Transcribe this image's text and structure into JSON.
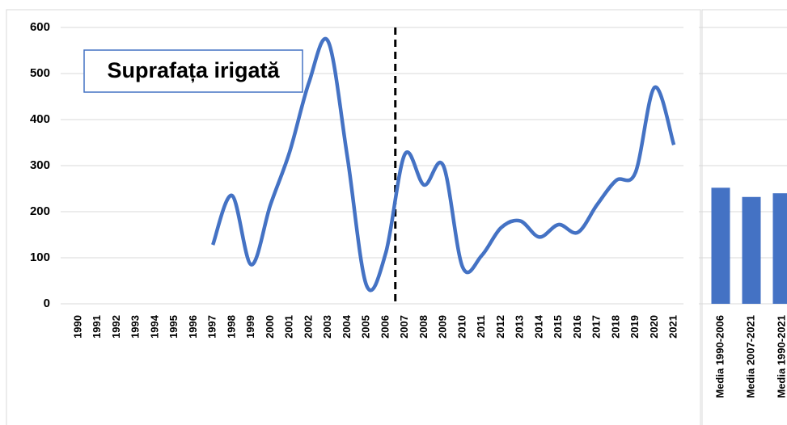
{
  "chart_data": [
    {
      "type": "line",
      "annotation": "Suprafața irigată",
      "categories": [
        "1990",
        "1991",
        "1992",
        "1993",
        "1994",
        "1995",
        "1996",
        "1997",
        "1998",
        "1999",
        "2000",
        "2001",
        "2002",
        "2003",
        "2004",
        "2005",
        "2006",
        "2007",
        "2008",
        "2009",
        "2010",
        "2011",
        "2012",
        "2013",
        "2014",
        "2015",
        "2016",
        "2017",
        "2018",
        "2019",
        "2020",
        "2021"
      ],
      "series": [
        {
          "color": "#4472c4",
          "values": [
            null,
            null,
            null,
            null,
            null,
            null,
            null,
            128,
            235,
            85,
            215,
            330,
            480,
            570,
            320,
            40,
            110,
            325,
            258,
            300,
            80,
            105,
            165,
            180,
            145,
            172,
            155,
            215,
            268,
            285,
            470,
            345
          ]
        }
      ],
      "divider_after": "2006",
      "ylim": [
        0,
        600
      ],
      "yticks": [
        0,
        100,
        200,
        300,
        400,
        500,
        600
      ],
      "grid": true
    },
    {
      "type": "bar",
      "categories": [
        "Media 1990-2006",
        "Media 2007-2021",
        "Media 1990-2021"
      ],
      "values": [
        252,
        232,
        240
      ],
      "color": "#4472c4",
      "ylim": [
        0,
        600
      ],
      "yticks": [
        0,
        100,
        200,
        300,
        400,
        500,
        600
      ],
      "grid": true,
      "show_ytick_labels": false
    }
  ]
}
